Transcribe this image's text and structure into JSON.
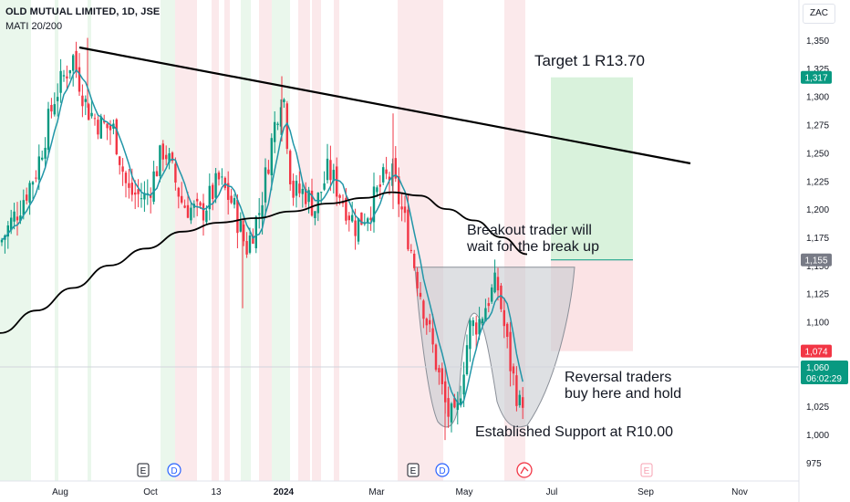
{
  "header": {
    "title": "OLD MUTUAL LIMITED, 1D, JSE",
    "indicator": "MATI 20/200",
    "currency": "ZAC"
  },
  "annotations": {
    "target": "Target 1 R13.70",
    "breakout_line1": "Breakout trader will",
    "breakout_line2": "wait for the break up",
    "reversal_line1": "Reversal traders",
    "reversal_line2": "buy here and hold",
    "support": "Established Support at R10.00"
  },
  "price_tags": [
    {
      "label": "1,317",
      "value": 1317,
      "color": "#089981"
    },
    {
      "label": "1,155",
      "value": 1155,
      "color": "#787b86"
    },
    {
      "label": "1,074",
      "value": 1074,
      "color": "#f23645"
    }
  ],
  "last_price": {
    "label": "1,060",
    "countdown": "06:02:29",
    "value": 1060,
    "color": "#089981"
  },
  "event_markers": [
    "E",
    "D",
    "E",
    "D",
    "E"
  ],
  "colors": {
    "up": "#089981",
    "down": "#f23645",
    "ma20": "#2196a8",
    "ma200": "#000000",
    "target_zone": "#d9f2dc",
    "stop_zone": "#fbe3e5",
    "bg_green": "#e8f6ea",
    "bg_red": "#fbe7e9",
    "pattern": "#c8cbd0"
  },
  "chart_data": {
    "type": "candlestick",
    "ylim": [
      962,
      1372
    ],
    "y_ticks": [
      "1,350",
      "1,325",
      "1,300",
      "1,275",
      "1,250",
      "1,225",
      "1,200",
      "1,175",
      "1,150",
      "1,125",
      "1,100",
      "1,025",
      "1,000",
      "975"
    ],
    "x_ticks": [
      "Aug",
      "Oct",
      "13",
      "2024",
      "Mar",
      "May",
      "Jul",
      "Sep",
      "Nov"
    ],
    "ma20_label": "MA 20",
    "ma200_label": "MA 200",
    "trendline": [
      {
        "date": "Aug",
        "value": 1345
      },
      {
        "date": "Oct",
        "value": 1242
      }
    ],
    "target_zone": {
      "from": 1155,
      "to": 1317
    },
    "stop_zone": {
      "from": 1074,
      "to": 1155
    },
    "support_level": 1000,
    "breakout_level": 1155
  }
}
